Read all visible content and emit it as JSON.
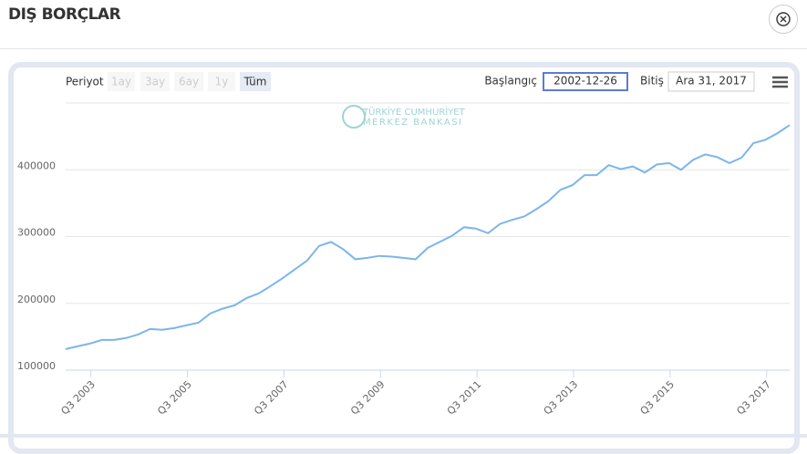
{
  "ui": {
    "title": "DIŞ BORÇLAR",
    "period_label": "Periyot",
    "buttons": [
      "1ay",
      "3ay",
      "6ay",
      "1y",
      "Tüm"
    ],
    "start_label": "Başlangıç",
    "start_value": "2002-12-26",
    "end_label": "Bitiş",
    "end_value": "Ara 31, 2017",
    "watermark": [
      "TÜRKİYE CUMHURİYET",
      "MERKEZ BANKASI"
    ]
  },
  "chart_data": {
    "type": "line",
    "color": "#7cb5ec",
    "grid": true,
    "categories": [
      null,
      null,
      null,
      "Q3 2003",
      null,
      null,
      null,
      null,
      null,
      null,
      null,
      "Q3 2005",
      null,
      null,
      null,
      null,
      null,
      null,
      null,
      "Q3 2007",
      null,
      null,
      null,
      null,
      null,
      null,
      null,
      "Q3 2009",
      null,
      null,
      null,
      null,
      null,
      null,
      null,
      "Q3 2011",
      null,
      null,
      null,
      null,
      null,
      null,
      null,
      "Q3 2013",
      null,
      null,
      null,
      null,
      null,
      null,
      null,
      "Q3 2015",
      null,
      null,
      null,
      null,
      null,
      null,
      null,
      "Q3 2017",
      null
    ],
    "values": [
      131500,
      135600,
      139700,
      145200,
      145200,
      148000,
      153400,
      161600,
      160300,
      163000,
      167000,
      171000,
      185000,
      192000,
      197000,
      208000,
      215000,
      226000,
      238000,
      251000,
      264000,
      286000,
      292000,
      281000,
      266000,
      268000,
      271000,
      270000,
      268000,
      266000,
      283000,
      292000,
      301000,
      314000,
      312000,
      305000,
      319000,
      325000,
      330000,
      341000,
      353000,
      370000,
      377000,
      392000,
      392000,
      407000,
      401000,
      405000,
      396000,
      408000,
      410000,
      400000,
      415000,
      423000,
      419000,
      410000,
      418000,
      440000,
      445000,
      455000,
      467000
    ],
    "ylim": [
      100000,
      500000
    ],
    "yticks": [
      100000,
      200000,
      300000,
      400000
    ]
  }
}
